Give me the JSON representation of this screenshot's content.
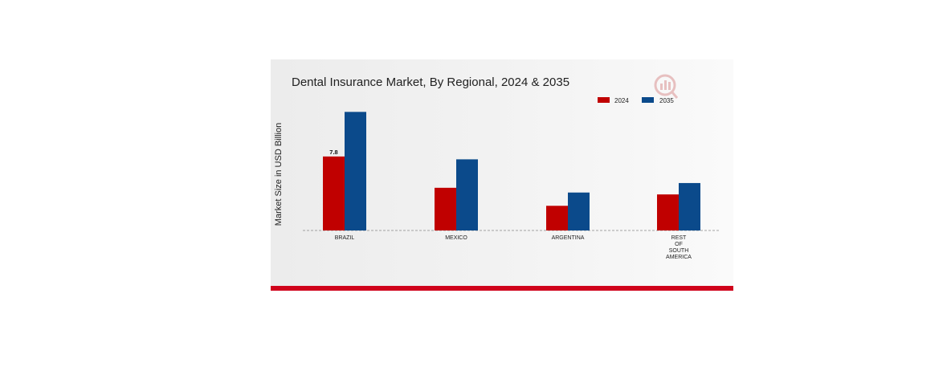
{
  "chart_data": {
    "type": "bar",
    "title": "Dental Insurance Market, By Regional, 2024 & 2035",
    "xlabel": "",
    "ylabel": "Market Size in USD Billion",
    "categories": [
      [
        "BRAZIL"
      ],
      [
        "MEXICO"
      ],
      [
        "ARGENTINA"
      ],
      [
        "REST",
        "OF",
        "SOUTH",
        "AMERICA"
      ]
    ],
    "series": [
      {
        "name": "2024",
        "color": "#c00000",
        "values": [
          7.8,
          4.5,
          2.6,
          3.8
        ]
      },
      {
        "name": "2035",
        "color": "#0b4a8b",
        "values": [
          12.5,
          7.5,
          4.0,
          5.0
        ]
      }
    ],
    "data_labels": [
      {
        "series": 0,
        "index": 0,
        "text": "7.8"
      }
    ],
    "ylim": [
      0,
      16
    ],
    "grid": false,
    "legend": "top-right",
    "baseline_style": "dashed"
  }
}
